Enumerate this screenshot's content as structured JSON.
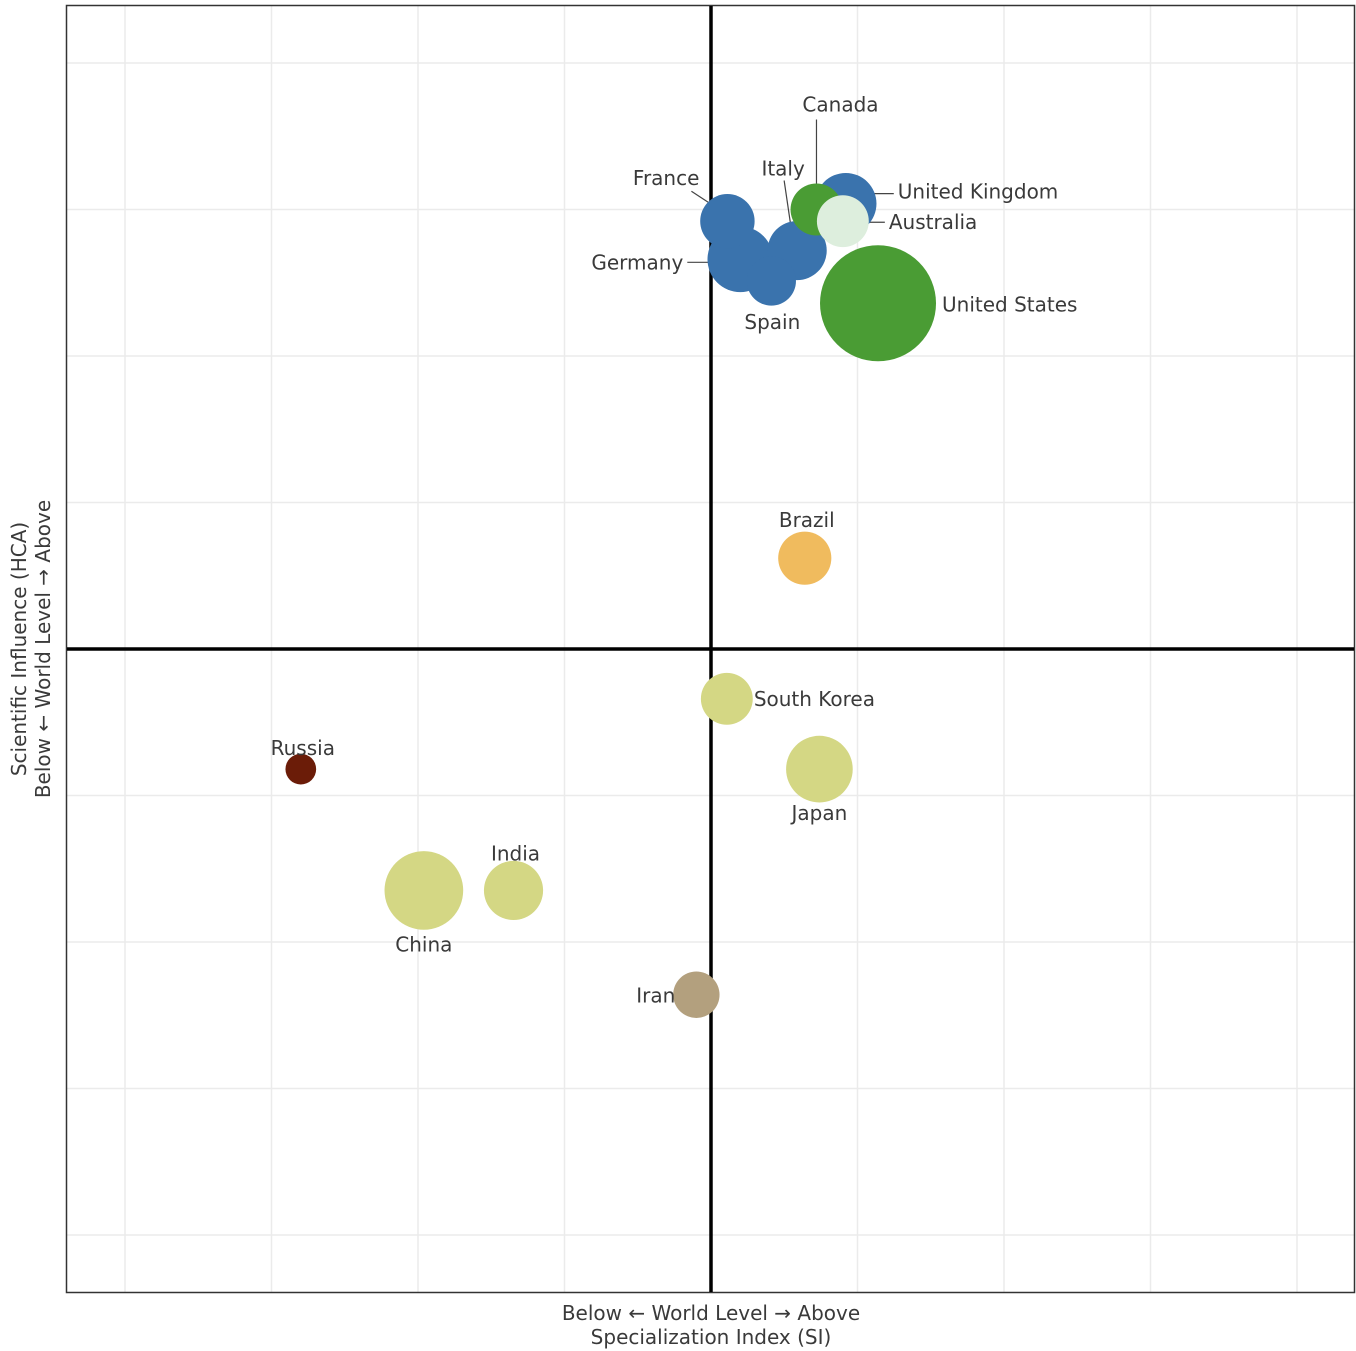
{
  "chart_data": {
    "type": "scatter",
    "title": "",
    "xlabel": "Below ← World Level → Above",
    "xlabel_line2": "Specialization Index (SI)",
    "ylabel": "Scientific Influence (HCA)",
    "ylabel_line2": "Below ← World Level → Above",
    "xlim": [
      -1.1,
      1.1
    ],
    "ylim": [
      -1.1,
      1.1
    ],
    "grid": true,
    "reference_lines": {
      "x": 0,
      "y": 0
    },
    "points": [
      {
        "name": "United States",
        "x": 0.285,
        "y": 0.59,
        "size": 100,
        "color": "#4a9c34"
      },
      {
        "name": "United Kingdom",
        "x": 0.23,
        "y": 0.76,
        "size": 28,
        "color": "#3a73ad"
      },
      {
        "name": "Canada",
        "x": 0.18,
        "y": 0.75,
        "size": 20,
        "color": "#4a9c34"
      },
      {
        "name": "Australia",
        "x": 0.225,
        "y": 0.73,
        "size": 20,
        "color": "#ddeedd"
      },
      {
        "name": "France",
        "x": 0.028,
        "y": 0.73,
        "size": 22,
        "color": "#3a73ad"
      },
      {
        "name": "Germany",
        "x": 0.05,
        "y": 0.665,
        "size": 32,
        "color": "#3a73ad"
      },
      {
        "name": "Italy",
        "x": 0.147,
        "y": 0.68,
        "size": 26,
        "color": "#3a73ad"
      },
      {
        "name": "Spain",
        "x": 0.103,
        "y": 0.628,
        "size": 18,
        "color": "#3a73ad"
      },
      {
        "name": "Brazil",
        "x": 0.16,
        "y": 0.155,
        "size": 21,
        "color": "#f0bb5e"
      },
      {
        "name": "South Korea",
        "x": 0.027,
        "y": -0.085,
        "size": 20,
        "color": "#d4d784"
      },
      {
        "name": "Japan",
        "x": 0.185,
        "y": -0.205,
        "size": 33,
        "color": "#d4d784"
      },
      {
        "name": "Russia",
        "x": -0.7,
        "y": -0.205,
        "size": 7,
        "color": "#6b1c08"
      },
      {
        "name": "China",
        "x": -0.49,
        "y": -0.412,
        "size": 46,
        "color": "#d4d784"
      },
      {
        "name": "India",
        "x": -0.337,
        "y": -0.412,
        "size": 26,
        "color": "#d4d784"
      },
      {
        "name": "Iran",
        "x": -0.025,
        "y": -0.59,
        "size": 16,
        "color": "#b3a07e"
      }
    ]
  }
}
